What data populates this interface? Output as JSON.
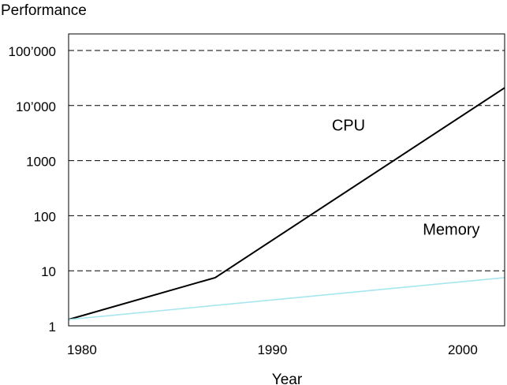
{
  "chart_data": {
    "type": "line",
    "ylabel": "Performance",
    "xlabel": "Year",
    "y_scale": "log",
    "ylim": [
      1,
      200000
    ],
    "xlim": [
      1979.3,
      2002.2
    ],
    "x_ticks": [
      {
        "value": 1980,
        "label": "1980"
      },
      {
        "value": 1990,
        "label": "1990"
      },
      {
        "value": 2000,
        "label": "2000"
      }
    ],
    "y_ticks": [
      {
        "value": 1,
        "label": "1"
      },
      {
        "value": 10,
        "label": "10"
      },
      {
        "value": 100,
        "label": "100"
      },
      {
        "value": 1000,
        "label": "1000"
      },
      {
        "value": 10000,
        "label": "10’000"
      },
      {
        "value": 100000,
        "label": "100’000"
      }
    ],
    "grid": "horizontal dashed",
    "series": [
      {
        "name": "CPU",
        "color": "#000000",
        "points": [
          [
            1979.3,
            1.3
          ],
          [
            1987,
            7.5
          ],
          [
            2002.2,
            21000
          ]
        ],
        "label_anchor": [
          1994,
          3500
        ]
      },
      {
        "name": "Memory",
        "color": "#a6e6ee",
        "points": [
          [
            1979.3,
            1.3
          ],
          [
            2002.2,
            7.5
          ]
        ],
        "label_anchor": [
          1999.4,
          45
        ]
      }
    ]
  }
}
